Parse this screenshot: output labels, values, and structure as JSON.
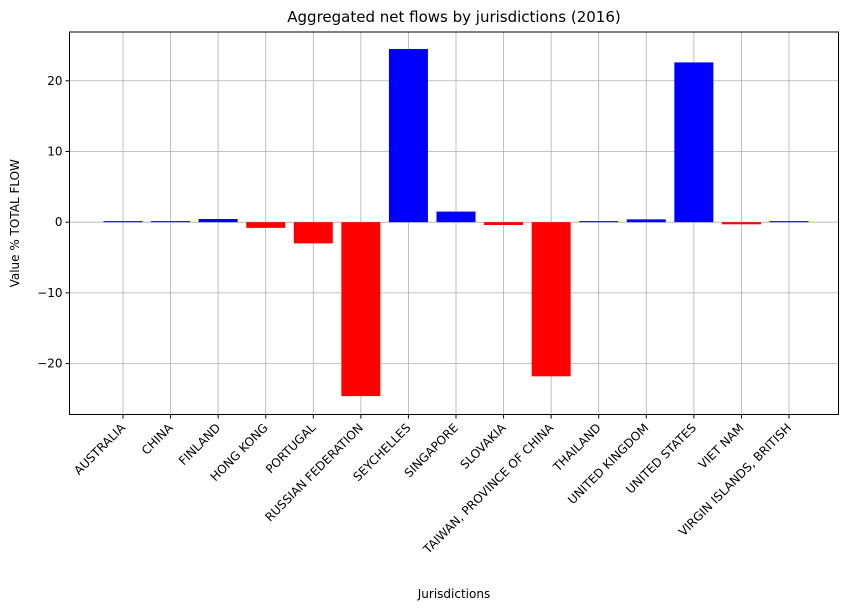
{
  "chart_data": {
    "type": "bar",
    "title": "Aggregated net flows by jurisdictions (2016)",
    "xlabel": "Jurisdictions",
    "ylabel": "Value % TOTAL FLOW",
    "categories": [
      "AUSTRALIA",
      "CHINA",
      "FINLAND",
      "HONG KONG",
      "PORTUGAL",
      "RUSSIAN FEDERATION",
      "SEYCHELLES",
      "SINGAPORE",
      "SLOVAKIA",
      "TAIWAN, PROVINCE OF CHINA",
      "THAILAND",
      "UNITED KINGDOM",
      "UNITED STATES",
      "VIET NAM",
      "VIRGIN ISLANDS, BRITISH"
    ],
    "values": [
      0.15,
      0.15,
      0.45,
      -0.8,
      -3.0,
      -24.6,
      24.5,
      1.5,
      -0.4,
      -21.8,
      0.15,
      0.4,
      22.6,
      -0.3,
      0.15
    ],
    "ylim": [
      -27.2,
      26.9
    ],
    "yticks": [
      -20,
      -10,
      0,
      10,
      20
    ],
    "ytick_labels": [
      "−20",
      "−10",
      "0",
      "10",
      "20"
    ],
    "grid": true,
    "colors": {
      "positive": "#0000ff",
      "negative": "#ff0000"
    }
  }
}
